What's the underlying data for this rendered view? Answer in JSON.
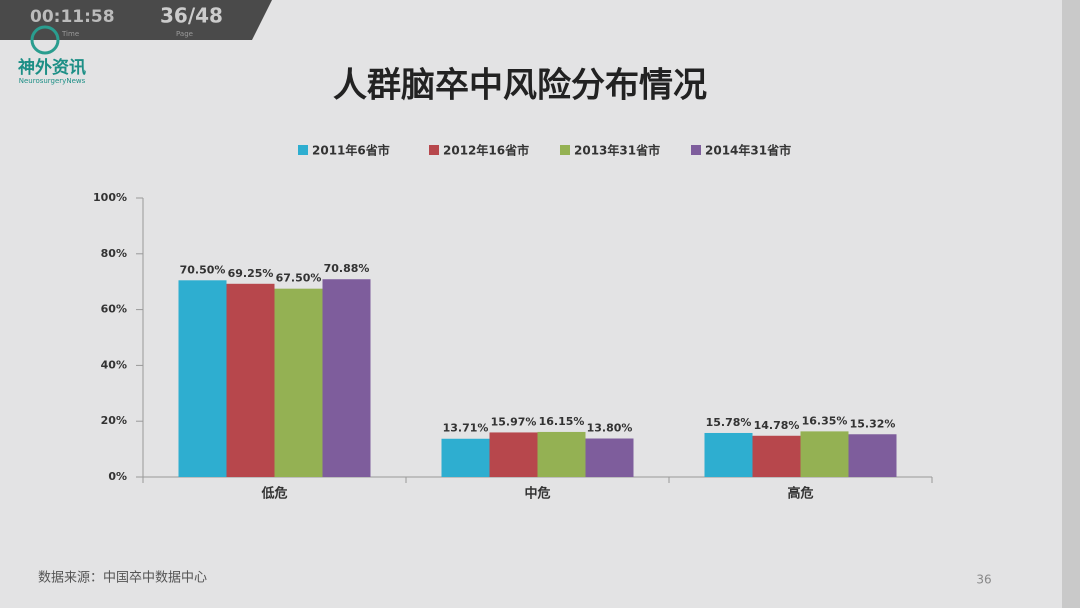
{
  "overlay": {
    "time": "00:11:58",
    "time_caption": "Time",
    "page": "36/48",
    "page_caption": "Page"
  },
  "logo": {
    "name": "神外资讯",
    "subtitle": "NeurosurgeryNews"
  },
  "footer": {
    "source": "数据来源：中国卒中数据中心",
    "slide_number": "36"
  },
  "chart_data": {
    "type": "bar",
    "title": "人群脑卒中风险分布情况",
    "categories": [
      "低危",
      "中危",
      "高危"
    ],
    "series": [
      {
        "name": "2011年6省市",
        "color": "#2eaed0",
        "values": [
          70.5,
          13.71,
          15.78
        ],
        "value_labels": [
          "70.50%",
          "13.71%",
          "15.78%"
        ]
      },
      {
        "name": "2012年16省市",
        "color": "#b7474c",
        "values": [
          69.25,
          15.97,
          14.78
        ],
        "value_labels": [
          "69.25%",
          "15.97%",
          "14.78%"
        ]
      },
      {
        "name": "2013年31省市",
        "color": "#94b153",
        "values": [
          67.5,
          16.15,
          16.35
        ],
        "value_labels": [
          "67.50%",
          "16.15%",
          "16.35%"
        ]
      },
      {
        "name": "2014年31省市",
        "color": "#7e5d9c",
        "values": [
          70.88,
          13.8,
          15.32
        ],
        "value_labels": [
          "70.88%",
          "13.80%",
          "15.32%"
        ]
      }
    ],
    "ylim": [
      0,
      100
    ],
    "yticks": [
      {
        "value": 0,
        "label": "0%"
      },
      {
        "value": 20,
        "label": "20%"
      },
      {
        "value": 40,
        "label": "40%"
      },
      {
        "value": 60,
        "label": "60%"
      },
      {
        "value": 80,
        "label": "80%"
      },
      {
        "value": 100,
        "label": "100%"
      }
    ],
    "legend": "top"
  }
}
